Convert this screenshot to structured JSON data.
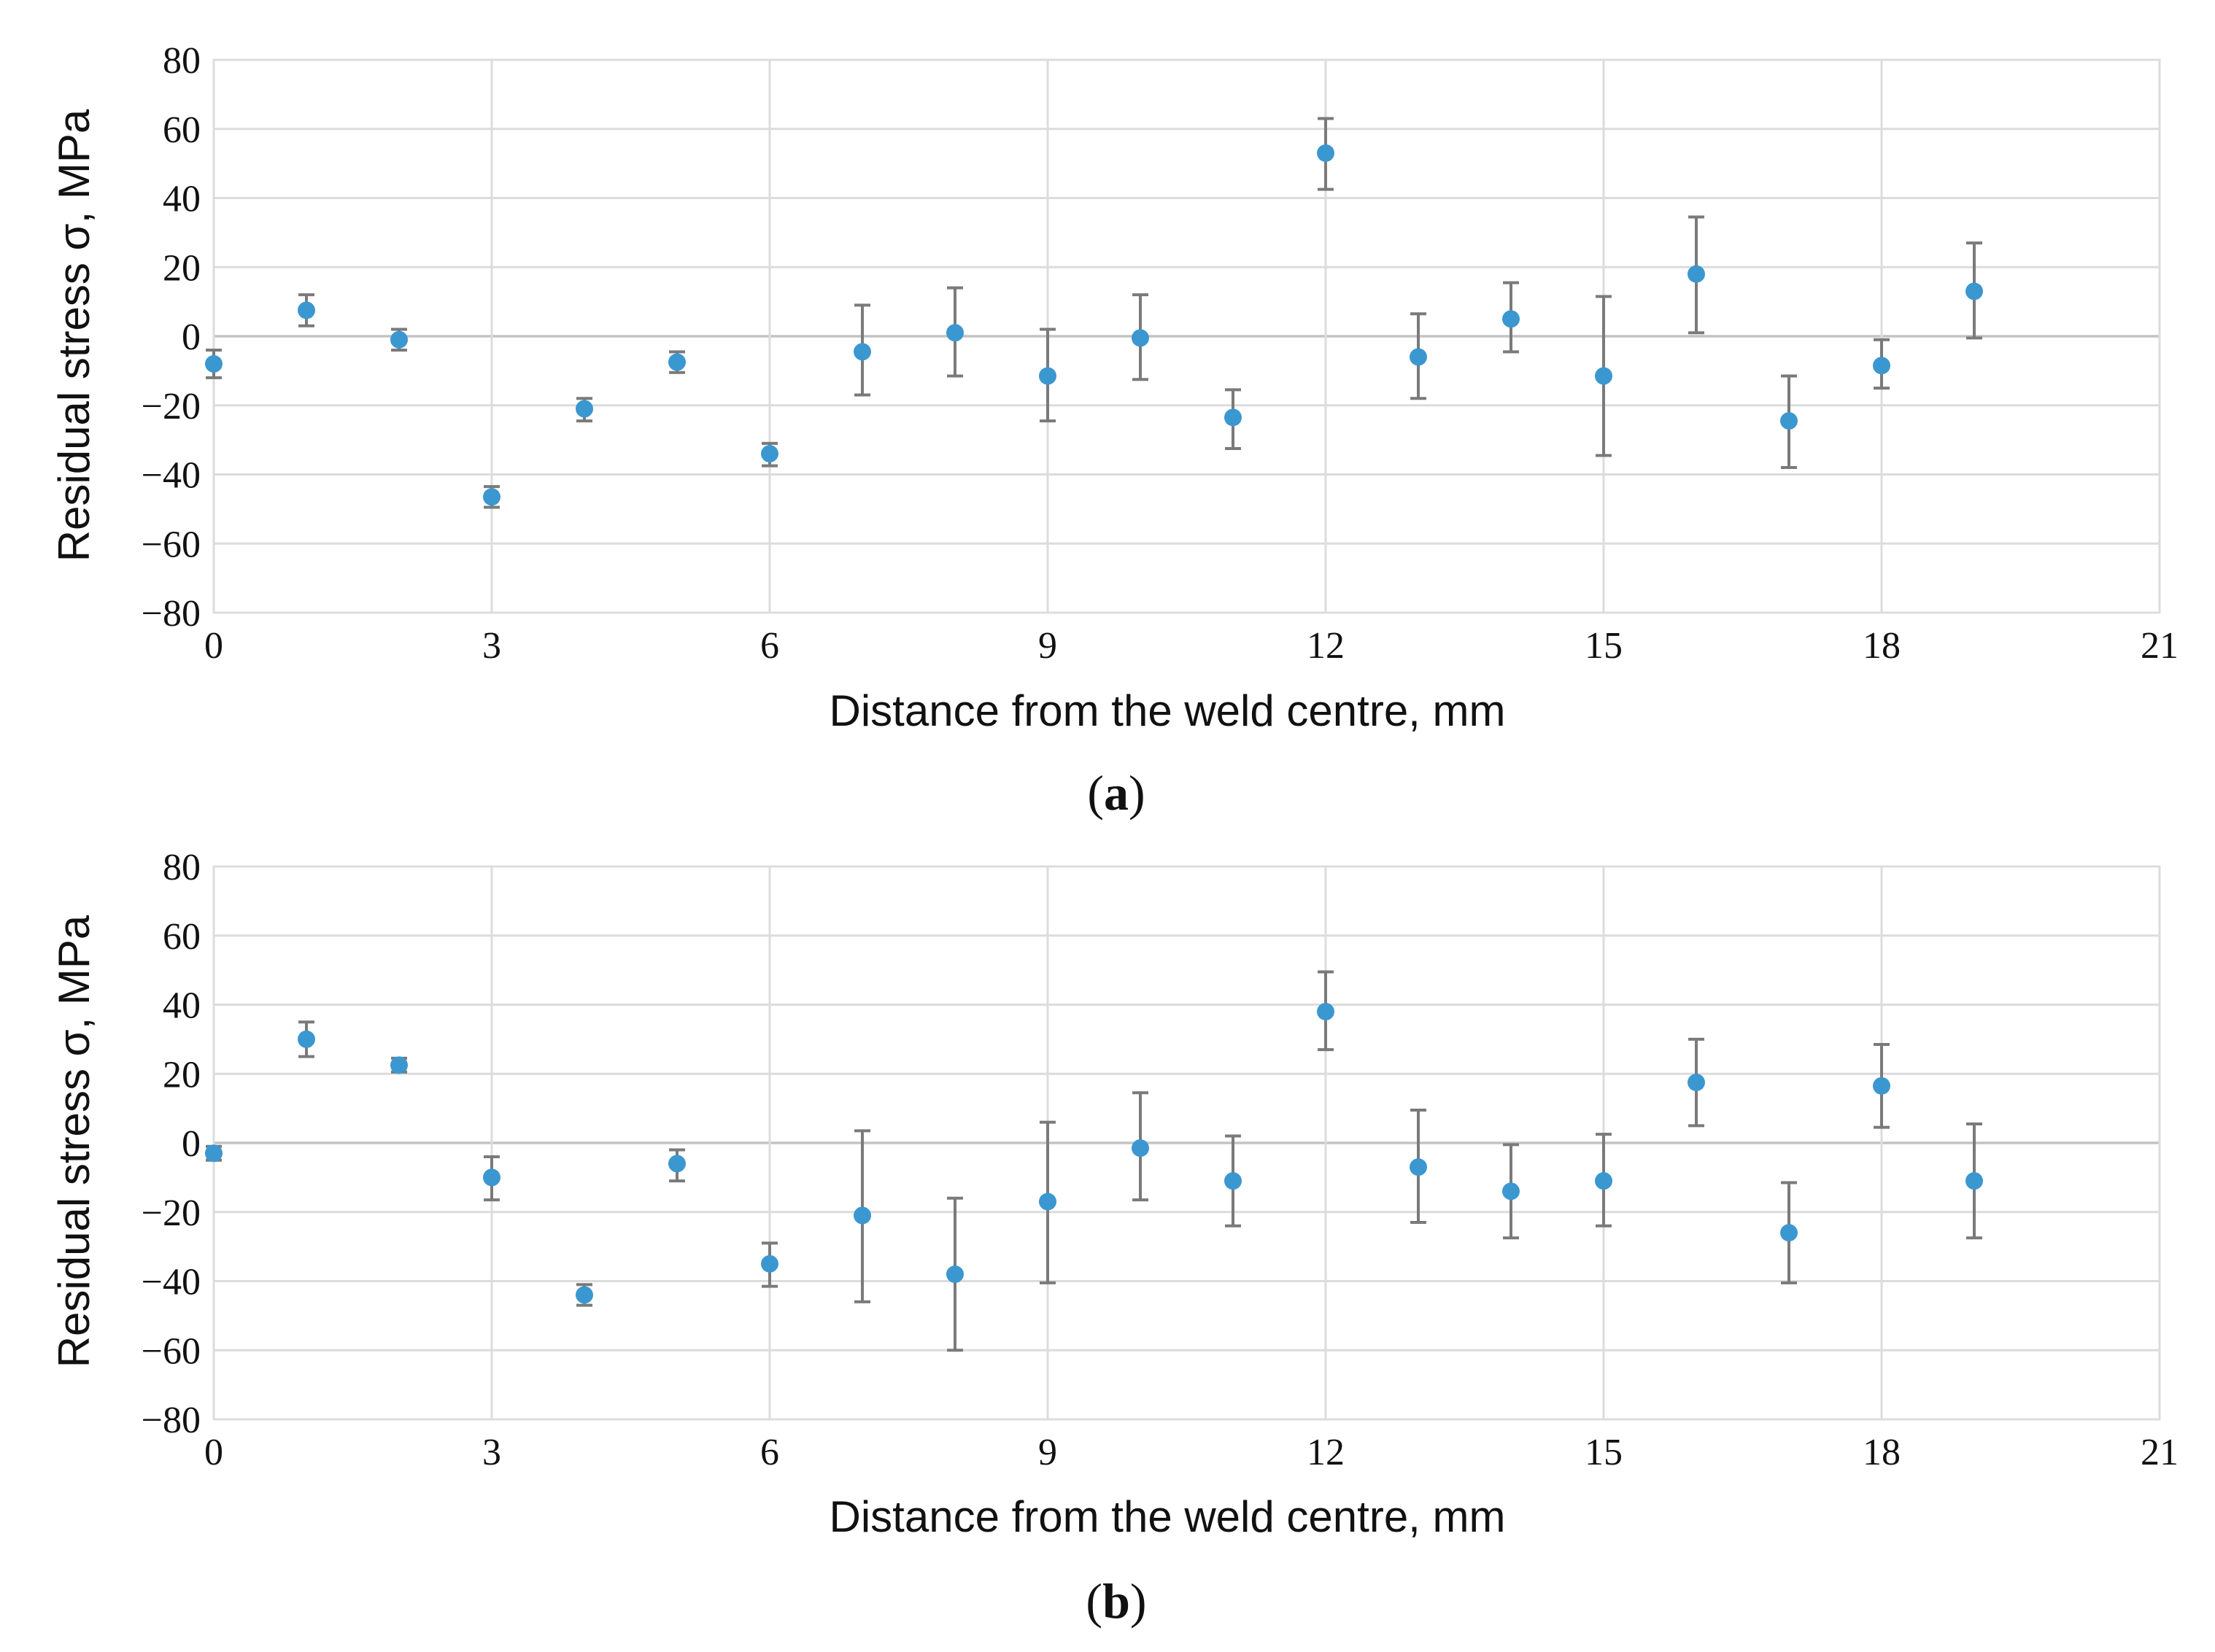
{
  "chart_data": [
    {
      "type": "scatter",
      "panel": "a",
      "panel_label": "a",
      "title": "",
      "xlabel": "Distance from the weld centre, mm",
      "ylabel": "Residual stress σ, MPa",
      "xlim": [
        0,
        21
      ],
      "ylim": [
        -80,
        80
      ],
      "xticks": [
        0,
        3,
        6,
        9,
        12,
        15,
        18,
        21
      ],
      "yticks": [
        80,
        60,
        40,
        20,
        0,
        -20,
        -40,
        -60,
        -80
      ],
      "ytick_labels": [
        "80",
        "60",
        "40",
        "20",
        "0",
        "−20",
        "−40",
        "−60",
        "−80"
      ],
      "grid": true,
      "error_bars": true,
      "series": [
        {
          "name": "Residual stress",
          "color": "#3b97d0",
          "x": [
            0,
            1,
            2,
            3,
            4,
            5,
            6,
            7,
            8,
            9,
            10,
            11,
            12,
            13,
            14,
            15,
            16,
            17,
            18,
            19
          ],
          "y": [
            -8,
            7.5,
            -1,
            -46.5,
            -21,
            -7.5,
            -34,
            -4.5,
            1,
            -11.5,
            -0.5,
            -23.5,
            53,
            -6,
            5,
            -11.5,
            18,
            -24.5,
            -8.5,
            13
          ],
          "err_low": [
            4,
            4.5,
            3,
            3,
            3.5,
            3,
            3.5,
            12.5,
            12.5,
            13,
            12,
            9,
            10.5,
            12,
            9.5,
            23,
            17,
            13.5,
            6.5,
            13.5
          ],
          "err_high": [
            4,
            4.5,
            3,
            3,
            3,
            3,
            3,
            13.5,
            13,
            13.5,
            12.5,
            8,
            10,
            12.5,
            10.5,
            23,
            16.5,
            13,
            7.5,
            14
          ]
        }
      ]
    },
    {
      "type": "scatter",
      "panel": "b",
      "panel_label": "b",
      "title": "",
      "xlabel": "Distance from the weld centre, mm",
      "ylabel": "Residual stress σ, MPa",
      "xlim": [
        0,
        21
      ],
      "ylim": [
        -80,
        80
      ],
      "xticks": [
        0,
        3,
        6,
        9,
        12,
        15,
        18,
        21
      ],
      "yticks": [
        80,
        60,
        40,
        20,
        0,
        -20,
        -40,
        -60,
        -80
      ],
      "ytick_labels": [
        "80",
        "60",
        "40",
        "20",
        "0",
        "−20",
        "−40",
        "−60",
        "−80"
      ],
      "grid": true,
      "error_bars": true,
      "series": [
        {
          "name": "Residual stress",
          "color": "#3b97d0",
          "x": [
            0,
            1,
            2,
            3,
            4,
            5,
            6,
            7,
            8,
            9,
            10,
            11,
            12,
            13,
            14,
            15,
            16,
            17,
            18,
            19
          ],
          "y": [
            -3,
            30,
            22.5,
            -10,
            -44,
            -6,
            -35,
            -21,
            -38,
            -17,
            -1.5,
            -11,
            38,
            -7,
            -14,
            -11,
            17.5,
            -26,
            16.5,
            -11
          ],
          "err_low": [
            2,
            5,
            2,
            6.5,
            3,
            5,
            6.5,
            25,
            22,
            23.5,
            15,
            13,
            11,
            16,
            13.5,
            13,
            12.5,
            14.5,
            12,
            16.5
          ],
          "err_high": [
            2,
            5,
            2,
            6,
            3,
            4,
            6,
            24.5,
            22,
            23,
            16,
            13,
            11.5,
            16.5,
            13.5,
            13.5,
            12.5,
            14.5,
            12,
            16.5
          ]
        }
      ]
    }
  ]
}
